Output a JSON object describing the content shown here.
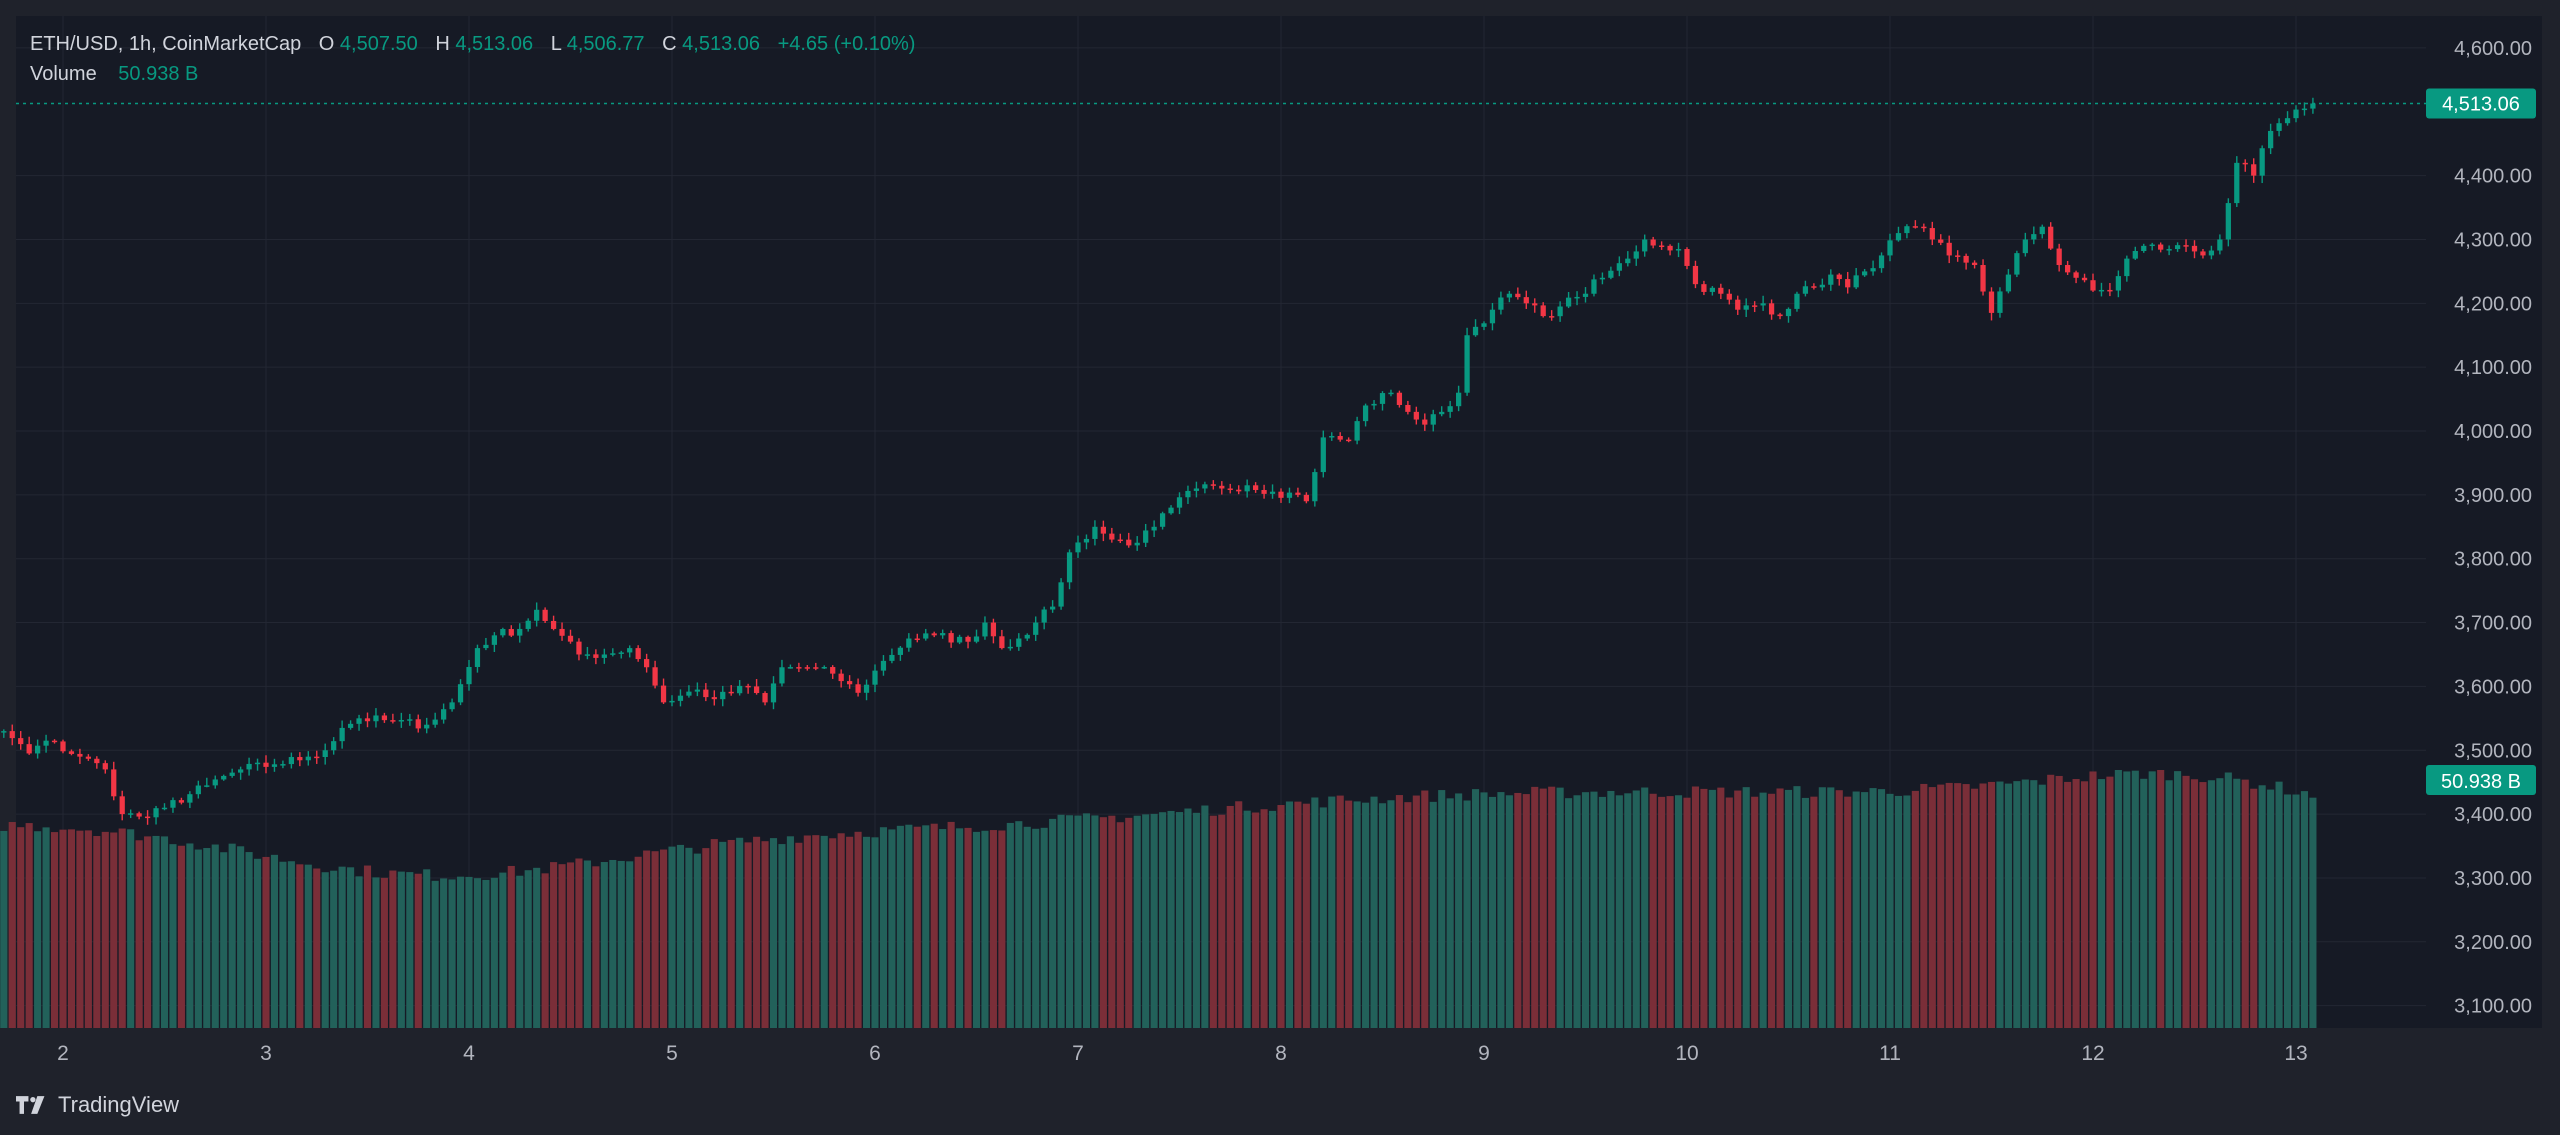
{
  "header": {
    "symbol": "ETH/USD, 1h, CoinMarketCap",
    "open_label": "O",
    "open": "4,507.50",
    "high_label": "H",
    "high": "4,513.06",
    "low_label": "L",
    "low": "4,506.77",
    "close_label": "C",
    "close": "4,513.06",
    "change": "+4.65 (+0.10%)",
    "volume_label": "Volume",
    "volume": "50.938 B"
  },
  "price_badge": "4,513.06",
  "volume_badge": "50.938 B",
  "footer": {
    "brand": "TradingView"
  },
  "colors": {
    "background": "#161a25",
    "up": "#089981",
    "down": "#f23645",
    "volume_up": "#22615a",
    "volume_down": "#7a2e38",
    "text": "#b2b5be",
    "grid": "#232733"
  },
  "chart_data": {
    "type": "candlestick",
    "interval": "1h",
    "y_ticks": [
      "4,600.00",
      "4,400.00",
      "4,300.00",
      "4,200.00",
      "4,100.00",
      "4,000.00",
      "3,900.00",
      "3,800.00",
      "3,700.00",
      "3,600.00",
      "3,500.00",
      "3,400.00",
      "3,300.00",
      "3,200.00",
      "3,100.00"
    ],
    "ylim": [
      3065,
      4650
    ],
    "x_ticks": [
      "2",
      "3",
      "4",
      "5",
      "6",
      "7",
      "8",
      "9",
      "10",
      "11",
      "12",
      "13"
    ],
    "candles_per_day": 24,
    "first_candle_day_offset": -0.875,
    "anchors": [
      [
        0,
        3625
      ],
      [
        2,
        3590
      ],
      [
        5,
        3570
      ],
      [
        8,
        3475
      ],
      [
        10,
        3510
      ],
      [
        14,
        3530
      ],
      [
        17,
        3495
      ],
      [
        19,
        3515
      ],
      [
        23,
        3490
      ],
      [
        26,
        3470
      ],
      [
        28,
        3400
      ],
      [
        31,
        3395
      ],
      [
        33,
        3410
      ],
      [
        38,
        3445
      ],
      [
        42,
        3470
      ],
      [
        46,
        3478
      ],
      [
        50,
        3490
      ],
      [
        52,
        3500
      ],
      [
        54,
        3535
      ],
      [
        56,
        3550
      ],
      [
        60,
        3545
      ],
      [
        64,
        3540
      ],
      [
        67,
        3575
      ],
      [
        70,
        3660
      ],
      [
        72,
        3680
      ],
      [
        75,
        3690
      ],
      [
        77,
        3720
      ],
      [
        79,
        3690
      ],
      [
        82,
        3650
      ],
      [
        85,
        3650
      ],
      [
        88,
        3660
      ],
      [
        90,
        3630
      ],
      [
        92,
        3575
      ],
      [
        96,
        3595
      ],
      [
        98,
        3580
      ],
      [
        102,
        3600
      ],
      [
        104,
        3575
      ],
      [
        106,
        3630
      ],
      [
        109,
        3630
      ],
      [
        112,
        3620
      ],
      [
        115,
        3590
      ],
      [
        118,
        3640
      ],
      [
        121,
        3675
      ],
      [
        124,
        3680
      ],
      [
        128,
        3670
      ],
      [
        130,
        3700
      ],
      [
        132,
        3660
      ],
      [
        134,
        3675
      ],
      [
        136,
        3700
      ],
      [
        138,
        3725
      ],
      [
        140,
        3810
      ],
      [
        143,
        3850
      ],
      [
        145,
        3830
      ],
      [
        148,
        3825
      ],
      [
        150,
        3850
      ],
      [
        152,
        3880
      ],
      [
        155,
        3910
      ],
      [
        158,
        3910
      ],
      [
        161,
        3915
      ],
      [
        164,
        3905
      ],
      [
        167,
        3900
      ],
      [
        168,
        3890
      ],
      [
        170,
        3990
      ],
      [
        173,
        3985
      ],
      [
        175,
        4040
      ],
      [
        178,
        4060
      ],
      [
        180,
        4030
      ],
      [
        182,
        4010
      ],
      [
        184,
        4030
      ],
      [
        186,
        4060
      ],
      [
        187,
        4150
      ],
      [
        190,
        4190
      ],
      [
        192,
        4215
      ],
      [
        194,
        4200
      ],
      [
        196,
        4180
      ],
      [
        198,
        4195
      ],
      [
        200,
        4210
      ],
      [
        203,
        4240
      ],
      [
        206,
        4270
      ],
      [
        208,
        4300
      ],
      [
        210,
        4290
      ],
      [
        212,
        4285
      ],
      [
        214,
        4230
      ],
      [
        217,
        4215
      ],
      [
        219,
        4190
      ],
      [
        222,
        4200
      ],
      [
        224,
        4180
      ],
      [
        226,
        4215
      ],
      [
        228,
        4225
      ],
      [
        230,
        4245
      ],
      [
        232,
        4225
      ],
      [
        234,
        4250
      ],
      [
        236,
        4275
      ],
      [
        238,
        4310
      ],
      [
        240,
        4320
      ],
      [
        242,
        4300
      ],
      [
        244,
        4275
      ],
      [
        247,
        4260
      ],
      [
        249,
        4185
      ],
      [
        251,
        4245
      ],
      [
        253,
        4300
      ],
      [
        255,
        4320
      ],
      [
        257,
        4260
      ],
      [
        259,
        4240
      ],
      [
        261,
        4220
      ],
      [
        263,
        4220
      ],
      [
        265,
        4270
      ],
      [
        267,
        4290
      ],
      [
        270,
        4285
      ],
      [
        272,
        4290
      ],
      [
        274,
        4275
      ],
      [
        276,
        4300
      ],
      [
        278,
        4420
      ],
      [
        280,
        4400
      ],
      [
        282,
        4470
      ],
      [
        284,
        4490
      ],
      [
        286,
        4505
      ],
      [
        287,
        4513
      ]
    ]
  }
}
